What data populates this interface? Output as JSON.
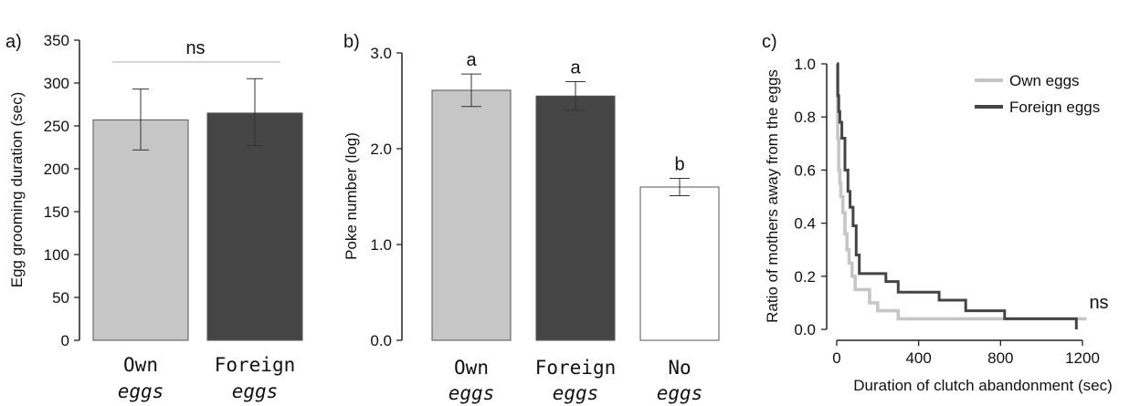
{
  "colors": {
    "own": "#c6c6c6",
    "foreign": "#454545",
    "none": "#ffffff",
    "outline": "#555555",
    "axis": "#222222",
    "ns_line": "#c8c8c8"
  },
  "chart_data": [
    {
      "panel": "a)",
      "type": "bar",
      "ylabel": "Egg grooming duration (sec)",
      "ylim": [
        0,
        350
      ],
      "yticks": [
        "0",
        "50",
        "100",
        "150",
        "200",
        "250",
        "300",
        "350"
      ],
      "categories": [
        [
          "Own",
          "eggs"
        ],
        [
          "Foreign",
          "eggs"
        ]
      ],
      "values": [
        257,
        265
      ],
      "errors": [
        [
          222,
          293
        ],
        [
          227,
          305
        ]
      ],
      "significance": "ns",
      "grid": false
    },
    {
      "panel": "b)",
      "type": "bar",
      "ylabel": "Poke number (log)",
      "ylim": [
        0,
        3
      ],
      "yticks": [
        "0.0",
        "1.0",
        "2.0",
        "3.0"
      ],
      "categories": [
        [
          "Own",
          "eggs"
        ],
        [
          "Foreign",
          "eggs"
        ],
        [
          "No",
          "eggs"
        ]
      ],
      "values": [
        2.61,
        2.55,
        1.6
      ],
      "errors": [
        [
          2.44,
          2.78
        ],
        [
          2.4,
          2.7
        ],
        [
          1.51,
          1.69
        ]
      ],
      "letters": [
        "a",
        "a",
        "b"
      ],
      "grid": false
    },
    {
      "panel": "c)",
      "type": "line",
      "xlabel": "Duration of clutch abandonment (sec)",
      "ylabel": "Ratio of mothers away from the eggs",
      "xlim": [
        0,
        1250
      ],
      "ylim": [
        0,
        1.0
      ],
      "xticks": [
        "0",
        "400",
        "800",
        "1200"
      ],
      "yticks": [
        "0.0",
        "0.2",
        "0.4",
        "0.6",
        "0.8",
        "1.0"
      ],
      "annotation": "ns",
      "legend_position": "top-right",
      "grid": false,
      "series": [
        {
          "name": "Own eggs",
          "steps": [
            [
              0,
              1.0
            ],
            [
              5,
              0.72
            ],
            [
              10,
              0.6
            ],
            [
              15,
              0.55
            ],
            [
              20,
              0.5
            ],
            [
              30,
              0.44
            ],
            [
              40,
              0.36
            ],
            [
              50,
              0.3
            ],
            [
              60,
              0.25
            ],
            [
              75,
              0.2
            ],
            [
              90,
              0.15
            ],
            [
              150,
              0.15
            ],
            [
              160,
              0.1
            ],
            [
              200,
              0.07
            ],
            [
              300,
              0.04
            ],
            [
              1220,
              0.04
            ]
          ]
        },
        {
          "name": "Foreign eggs",
          "steps": [
            [
              0,
              1.0
            ],
            [
              5,
              0.88
            ],
            [
              10,
              0.82
            ],
            [
              15,
              0.78
            ],
            [
              25,
              0.72
            ],
            [
              40,
              0.6
            ],
            [
              55,
              0.52
            ],
            [
              65,
              0.46
            ],
            [
              80,
              0.39
            ],
            [
              95,
              0.28
            ],
            [
              110,
              0.21
            ],
            [
              230,
              0.21
            ],
            [
              240,
              0.18
            ],
            [
              300,
              0.14
            ],
            [
              500,
              0.11
            ],
            [
              630,
              0.07
            ],
            [
              820,
              0.04
            ],
            [
              1170,
              0.04
            ],
            [
              1170,
              0.0
            ]
          ]
        }
      ]
    }
  ]
}
